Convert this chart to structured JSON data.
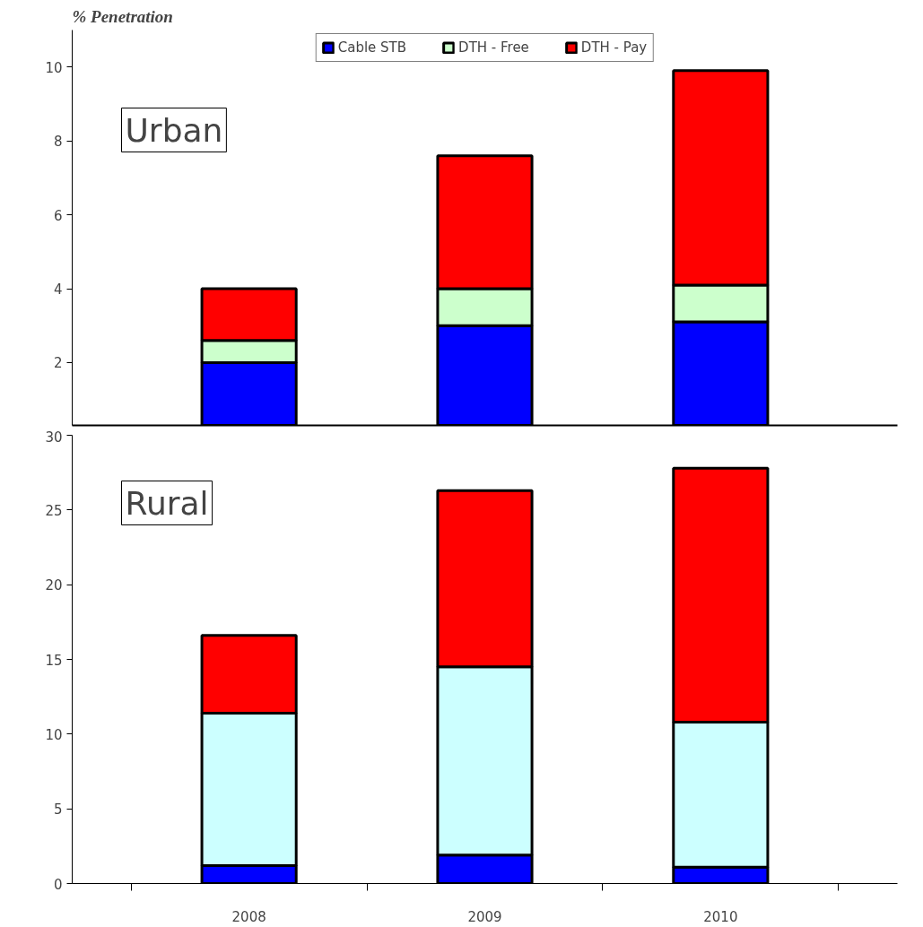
{
  "chart_data": [
    {
      "type": "bar",
      "stacked": true,
      "ylabel": "% Penetration",
      "annotations": [
        "Urban"
      ],
      "categories": [
        "2008",
        "2009",
        "2010"
      ],
      "tick_labels": "y",
      "legend": "top",
      "ylim": [
        0.3,
        11
      ],
      "yticks": [
        2,
        4,
        6,
        8,
        10
      ],
      "series": [
        {
          "name": "Cable STB",
          "color": "#0000ff",
          "values": [
            2.0,
            3.0,
            3.1
          ]
        },
        {
          "name": "DTH - Free",
          "color": "#ccffcc",
          "values": [
            0.6,
            1.0,
            1.0
          ]
        },
        {
          "name": "DTH - Pay",
          "color": "#ff0000",
          "values": [
            1.4,
            3.6,
            5.8
          ]
        }
      ]
    },
    {
      "type": "bar",
      "stacked": true,
      "annotations": [
        "Rural"
      ],
      "categories": [
        "2008",
        "2009",
        "2010"
      ],
      "ylim": [
        0,
        30
      ],
      "yticks": [
        0,
        5,
        10,
        15,
        20,
        25,
        30
      ],
      "series": [
        {
          "color": "#0000ff",
          "values": [
            1.2,
            1.9,
            1.1
          ]
        },
        {
          "color": "#ccffff",
          "values": [
            10.2,
            12.6,
            9.7
          ]
        },
        {
          "color": "#ff0000",
          "values": [
            5.2,
            11.8,
            17.0
          ]
        }
      ]
    }
  ]
}
